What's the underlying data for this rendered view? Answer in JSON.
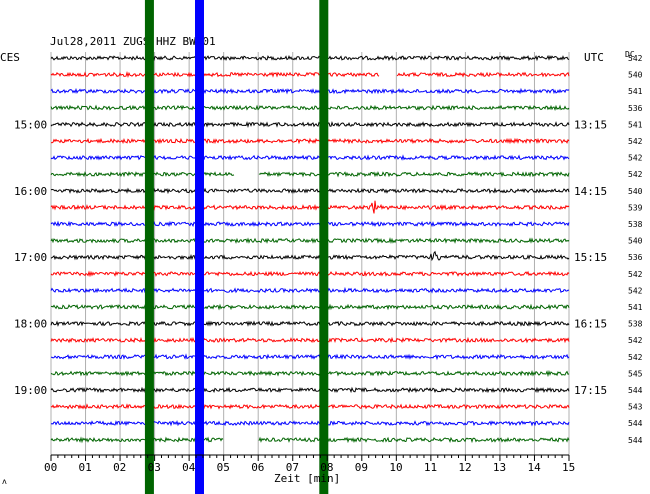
{
  "chart_data": {
    "type": "line",
    "title": "Jul28,2011   ZUGS HHZ BW 01",
    "left_label": "CES",
    "right_label": "UTC",
    "dc_label": "DC",
    "xlabel": "Zeit [min]",
    "xlim": [
      0,
      15
    ],
    "x_ticks": [
      "00",
      "01",
      "02",
      "03",
      "04",
      "05",
      "06",
      "07",
      "08",
      "09",
      "10",
      "11",
      "12",
      "13",
      "14",
      "15"
    ],
    "left_times": [
      "15:00",
      "16:00",
      "17:00",
      "18:00",
      "19:00"
    ],
    "right_times": [
      "13:15",
      "14:15",
      "15:15",
      "16:15",
      "17:15"
    ],
    "trace_colors": [
      "#000000",
      "#ff0000",
      "#0000ff",
      "#006400"
    ],
    "trace_count": 24,
    "dc_values": [
      "542",
      "540",
      "541",
      "536",
      "541",
      "542",
      "542",
      "542",
      "540",
      "539",
      "538",
      "540",
      "536",
      "542",
      "542",
      "541",
      "538",
      "542",
      "542",
      "545",
      "544",
      "543",
      "544",
      "544"
    ],
    "vertical_bars": [
      {
        "minute": 2.85,
        "color": "#006400"
      },
      {
        "minute": 4.3,
        "color": "#0000ff"
      },
      {
        "minute": 7.9,
        "color": "#006400"
      }
    ],
    "events": [
      {
        "trace": 9,
        "minute": 9.4,
        "amplitude": "large"
      },
      {
        "trace": 12,
        "minute": 11.1,
        "amplitude": "medium"
      }
    ],
    "gaps": [
      {
        "trace": 1,
        "from": 9.5,
        "to": 10.0
      },
      {
        "trace": 7,
        "from": 5.3,
        "to": 6.0
      },
      {
        "trace": 23,
        "from": 5.0,
        "to": 6.0
      }
    ],
    "footer_mark": "ʌ"
  }
}
